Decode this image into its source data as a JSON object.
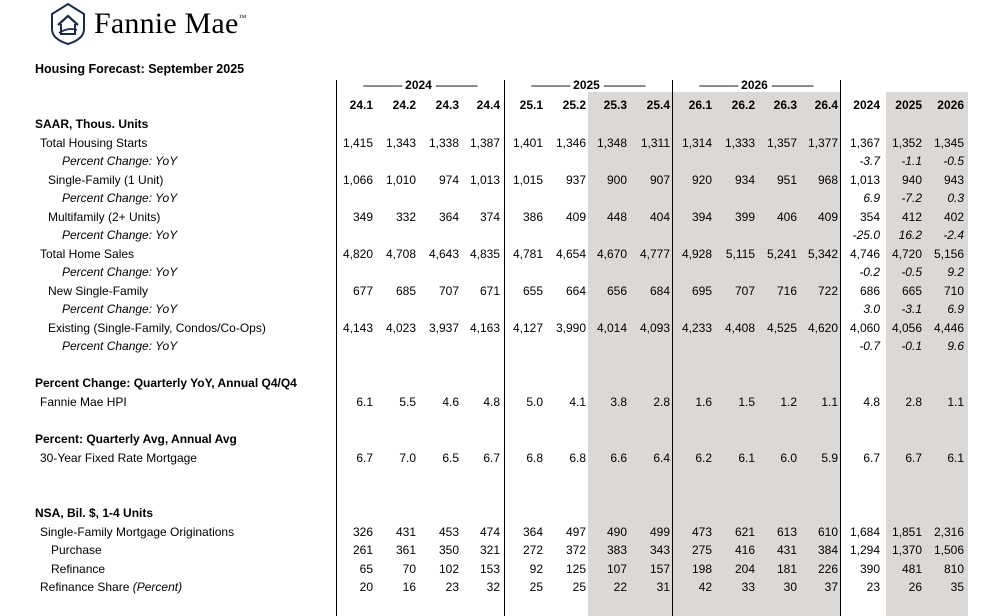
{
  "logo": {
    "text": "Fannie Mae",
    "tm": "™"
  },
  "title": "Housing Forecast: September 2025",
  "years": [
    {
      "label": "2024",
      "dash_left": "-------------",
      "dash_right": "--------------"
    },
    {
      "label": "2025",
      "dash_left": "-------------",
      "dash_right": "--------------"
    },
    {
      "label": "2026",
      "dash_left": "-------------",
      "dash_right": "--------------"
    }
  ],
  "columns": [
    "24.1",
    "24.2",
    "24.3",
    "24.4",
    "25.1",
    "25.2",
    "25.3",
    "25.4",
    "26.1",
    "26.2",
    "26.3",
    "26.4",
    "2024",
    "2025",
    "2026"
  ],
  "sections": {
    "saar": "SAAR, Thous. Units",
    "pct_change": "Percent Change: Quarterly YoY, Annual Q4/Q4",
    "percent": "Percent: Quarterly Avg, Annual Avg",
    "nsa": "NSA, Bil. $, 1-4 Units"
  },
  "rows": {
    "total_starts": {
      "label": "Total Housing Starts",
      "values": [
        "1,415",
        "1,343",
        "1,338",
        "1,387",
        "1,401",
        "1,346",
        "1,348",
        "1,311",
        "1,314",
        "1,333",
        "1,357",
        "1,377",
        "1,367",
        "1,352",
        "1,345"
      ]
    },
    "total_starts_yoy": {
      "label": "Percent Change: YoY",
      "values": [
        "",
        "",
        "",
        "",
        "",
        "",
        "",
        "",
        "",
        "",
        "",
        "",
        "-3.7",
        "-1.1",
        "-0.5"
      ]
    },
    "single_family": {
      "label": "Single-Family (1 Unit)",
      "values": [
        "1,066",
        "1,010",
        "974",
        "1,013",
        "1,015",
        "937",
        "900",
        "907",
        "920",
        "934",
        "951",
        "968",
        "1,013",
        "940",
        "943"
      ]
    },
    "single_family_yoy": {
      "label": "Percent Change: YoY",
      "values": [
        "",
        "",
        "",
        "",
        "",
        "",
        "",
        "",
        "",
        "",
        "",
        "",
        "6.9",
        "-7.2",
        "0.3"
      ]
    },
    "multifamily": {
      "label": "Multifamily (2+ Units)",
      "values": [
        "349",
        "332",
        "364",
        "374",
        "386",
        "409",
        "448",
        "404",
        "394",
        "399",
        "406",
        "409",
        "354",
        "412",
        "402"
      ]
    },
    "multifamily_yoy": {
      "label": "Percent Change: YoY",
      "values": [
        "",
        "",
        "",
        "",
        "",
        "",
        "",
        "",
        "",
        "",
        "",
        "",
        "-25.0",
        "16.2",
        "-2.4"
      ]
    },
    "total_sales": {
      "label": "Total Home Sales",
      "values": [
        "4,820",
        "4,708",
        "4,643",
        "4,835",
        "4,781",
        "4,654",
        "4,670",
        "4,777",
        "4,928",
        "5,115",
        "5,241",
        "5,342",
        "4,746",
        "4,720",
        "5,156"
      ]
    },
    "total_sales_yoy": {
      "label": "Percent Change: YoY",
      "values": [
        "",
        "",
        "",
        "",
        "",
        "",
        "",
        "",
        "",
        "",
        "",
        "",
        "-0.2",
        "-0.5",
        "9.2"
      ]
    },
    "new_sf": {
      "label": "New Single-Family",
      "values": [
        "677",
        "685",
        "707",
        "671",
        "655",
        "664",
        "656",
        "684",
        "695",
        "707",
        "716",
        "722",
        "686",
        "665",
        "710"
      ]
    },
    "new_sf_yoy": {
      "label": "Percent Change: YoY",
      "values": [
        "",
        "",
        "",
        "",
        "",
        "",
        "",
        "",
        "",
        "",
        "",
        "",
        "3.0",
        "-3.1",
        "6.9"
      ]
    },
    "existing": {
      "label": "Existing (Single-Family, Condos/Co-Ops)",
      "values": [
        "4,143",
        "4,023",
        "3,937",
        "4,163",
        "4,127",
        "3,990",
        "4,014",
        "4,093",
        "4,233",
        "4,408",
        "4,525",
        "4,620",
        "4,060",
        "4,056",
        "4,446"
      ]
    },
    "existing_yoy": {
      "label": "Percent Change: YoY",
      "values": [
        "",
        "",
        "",
        "",
        "",
        "",
        "",
        "",
        "",
        "",
        "",
        "",
        "-0.7",
        "-0.1",
        "9.6"
      ]
    },
    "hpi": {
      "label": "Fannie Mae HPI",
      "values": [
        "6.1",
        "5.5",
        "4.6",
        "4.8",
        "5.0",
        "4.1",
        "3.8",
        "2.8",
        "1.6",
        "1.5",
        "1.2",
        "1.1",
        "4.8",
        "2.8",
        "1.1"
      ]
    },
    "mortgage_rate": {
      "label": "30-Year Fixed Rate Mortgage",
      "values": [
        "6.7",
        "7.0",
        "6.5",
        "6.7",
        "6.8",
        "6.8",
        "6.6",
        "6.4",
        "6.2",
        "6.1",
        "6.0",
        "5.9",
        "6.7",
        "6.7",
        "6.1"
      ]
    },
    "originations": {
      "label": "Single-Family Mortgage Originations",
      "values": [
        "326",
        "431",
        "453",
        "474",
        "364",
        "497",
        "490",
        "499",
        "473",
        "621",
        "613",
        "610",
        "1,684",
        "1,851",
        "2,316"
      ]
    },
    "purchase": {
      "label": "Purchase",
      "values": [
        "261",
        "361",
        "350",
        "321",
        "272",
        "372",
        "383",
        "343",
        "275",
        "416",
        "431",
        "384",
        "1,294",
        "1,370",
        "1,506"
      ]
    },
    "refinance": {
      "label": "Refinance",
      "values": [
        "65",
        "70",
        "102",
        "153",
        "92",
        "125",
        "107",
        "157",
        "198",
        "204",
        "181",
        "226",
        "390",
        "481",
        "810"
      ]
    },
    "refi_share": {
      "label": "Refinance Share",
      "label_note": "(Percent)",
      "values": [
        "20",
        "16",
        "23",
        "32",
        "25",
        "25",
        "22",
        "31",
        "42",
        "33",
        "30",
        "37",
        "23",
        "26",
        "35"
      ]
    }
  }
}
